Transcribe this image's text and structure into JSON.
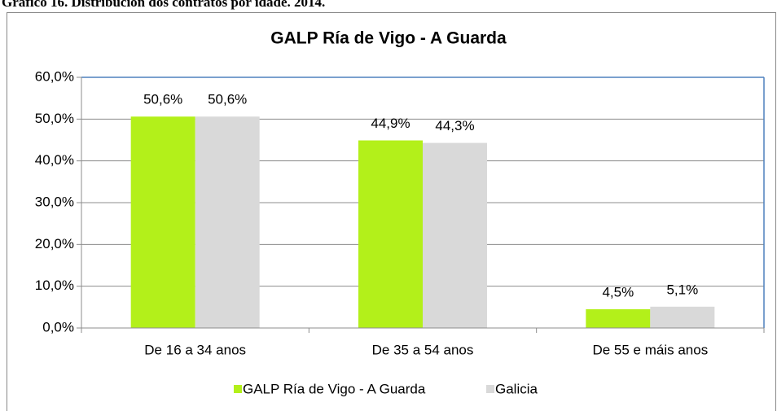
{
  "caption": "Gráfico 16. Distribución dos contratos por idade. 2014.",
  "chart_data": {
    "type": "bar",
    "title": "GALP Ría de Vigo - A Guarda",
    "categories": [
      "De 16 a 34 anos",
      "De 35 a 54 anos",
      "De 55 e máis anos"
    ],
    "series": [
      {
        "name": "GALP Ría de Vigo - A Guarda",
        "color": "#b3f01a",
        "values": [
          50.6,
          44.9,
          4.5
        ],
        "value_labels": [
          "50,6%",
          "44,9%",
          "4,5%"
        ]
      },
      {
        "name": "Galicia",
        "color": "#d9d9d9",
        "values": [
          50.6,
          44.3,
          5.1
        ],
        "value_labels": [
          "50,6%",
          "44,3%",
          "5,1%"
        ]
      }
    ],
    "ylim": [
      0,
      60
    ],
    "yticks": [
      {
        "value": 0,
        "label": "0,0%"
      },
      {
        "value": 10,
        "label": "10,0%"
      },
      {
        "value": 20,
        "label": "20,0%"
      },
      {
        "value": 30,
        "label": "30,0%"
      },
      {
        "value": 40,
        "label": "40,0%"
      },
      {
        "value": 50,
        "label": "50,0%"
      },
      {
        "value": 60,
        "label": "60,0%"
      }
    ],
    "grid": true,
    "legend": "bottom"
  }
}
